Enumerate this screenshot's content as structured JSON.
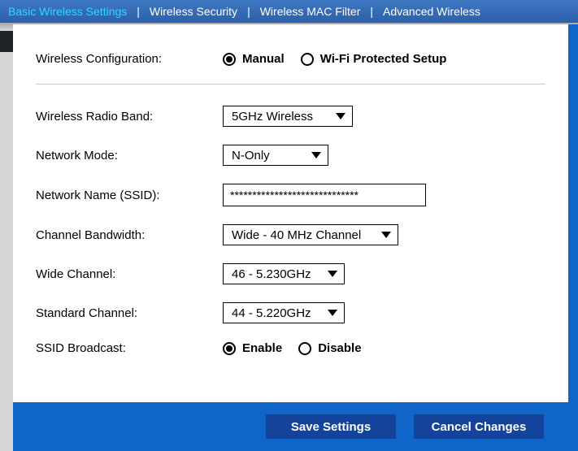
{
  "nav": {
    "tabs": [
      {
        "label": "Basic Wireless Settings",
        "active": true
      },
      {
        "label": "Wireless Security",
        "active": false
      },
      {
        "label": "Wireless MAC Filter",
        "active": false
      },
      {
        "label": "Advanced Wireless",
        "active": false
      }
    ]
  },
  "form": {
    "config_label": "Wireless Configuration:",
    "config_options": {
      "manual": "Manual",
      "wps": "Wi-Fi Protected Setup"
    },
    "config_selected": "manual",
    "radio_band_label": "Wireless Radio Band:",
    "radio_band_value": "5GHz Wireless",
    "network_mode_label": "Network Mode:",
    "network_mode_value": "N-Only",
    "ssid_label": "Network Name (SSID):",
    "ssid_value": "*****************************",
    "bandwidth_label": "Channel Bandwidth:",
    "bandwidth_value": "Wide - 40 MHz Channel",
    "wide_channel_label": "Wide Channel:",
    "wide_channel_value": "46 - 5.230GHz",
    "standard_channel_label": "Standard Channel:",
    "standard_channel_value": "44 - 5.220GHz",
    "ssid_broadcast_label": "SSID Broadcast:",
    "ssid_broadcast_options": {
      "enable": "Enable",
      "disable": "Disable"
    },
    "ssid_broadcast_selected": "enable"
  },
  "footer": {
    "save": "Save Settings",
    "cancel": "Cancel Changes"
  },
  "select_widths": {
    "radio_band": "160px",
    "network_mode": "130px",
    "bandwidth": "216px",
    "wide_channel": "150px",
    "standard_channel": "150px"
  }
}
